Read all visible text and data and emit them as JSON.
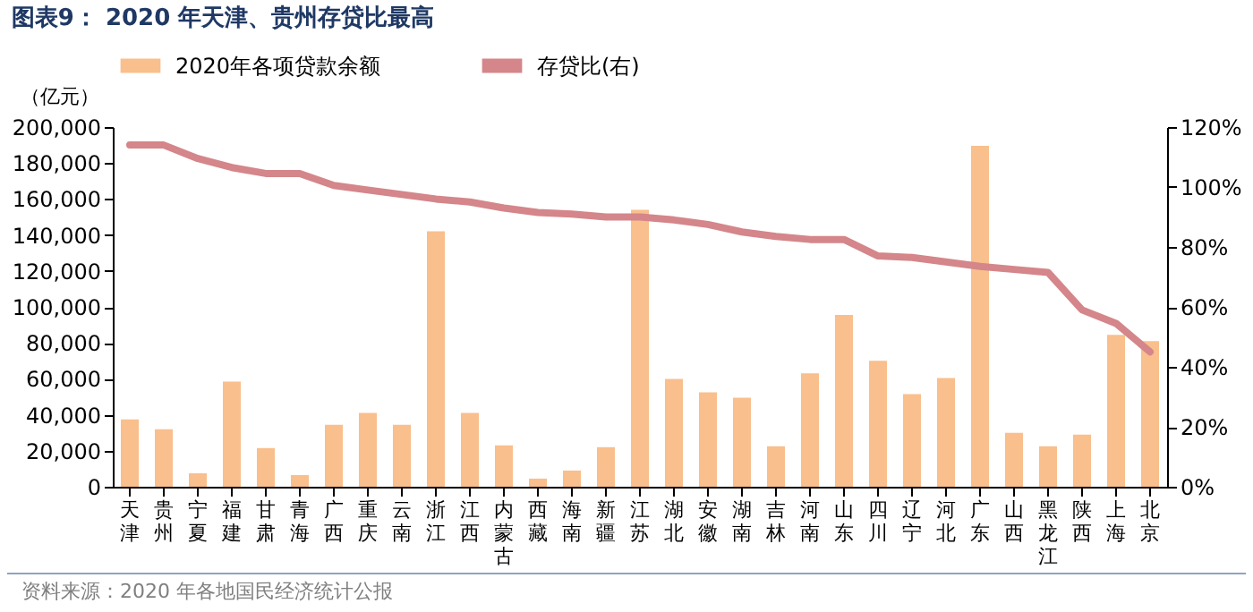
{
  "chart_data": {
    "type": "bar",
    "title": "图表9：  2020 年天津、贵州存贷比最高",
    "ylabel": "（亿元）",
    "categories": [
      "天津",
      "贵州",
      "宁夏",
      "福建",
      "甘肃",
      "青海",
      "广西",
      "重庆",
      "云南",
      "浙江",
      "江西",
      "内蒙古",
      "西藏",
      "海南",
      "新疆",
      "江苏",
      "湖北",
      "安徽",
      "湖南",
      "吉林",
      "河南",
      "山东",
      "四川",
      "辽宁",
      "河北",
      "广东",
      "山西",
      "黑龙江",
      "陕西",
      "上海",
      "北京"
    ],
    "series": [
      {
        "name": "2020年各项贷款余额",
        "color": "#f9bf8c",
        "values": [
          37500,
          32000,
          7500,
          58500,
          21500,
          6500,
          34500,
          41000,
          34500,
          142000,
          41000,
          23000,
          4500,
          9000,
          22000,
          154000,
          60000,
          52500,
          49500,
          22500,
          63000,
          95500,
          70000,
          51500,
          60500,
          189500,
          30000,
          22500,
          29000,
          84500,
          81000
        ]
      },
      {
        "name": "存贷比(右)",
        "type": "line",
        "axis": "y2",
        "color": "#d4868a",
        "values": [
          114,
          114,
          109.5,
          106.5,
          104.5,
          104.5,
          100.5,
          99,
          97.5,
          96,
          95,
          93,
          91.5,
          91,
          90,
          90,
          89,
          87.5,
          85,
          83.5,
          82.5,
          82.5,
          77,
          76.5,
          75,
          73.5,
          72.5,
          71.5,
          59,
          54.5,
          45
        ]
      }
    ],
    "ylim": [
      0,
      200000
    ],
    "yticks": [
      {
        "value": 0,
        "label": "0"
      },
      {
        "value": 20000,
        "label": "20,000"
      },
      {
        "value": 40000,
        "label": "40,000"
      },
      {
        "value": 60000,
        "label": "60,000"
      },
      {
        "value": 80000,
        "label": "80,000"
      },
      {
        "value": 100000,
        "label": "100,000"
      },
      {
        "value": 120000,
        "label": "120,000"
      },
      {
        "value": 140000,
        "label": "140,000"
      },
      {
        "value": 160000,
        "label": "160,000"
      },
      {
        "value": 180000,
        "label": "180,000"
      },
      {
        "value": 200000,
        "label": "200,000"
      }
    ],
    "y2lim": [
      0,
      120
    ],
    "y2ticks": [
      {
        "value": 0,
        "label": "0%"
      },
      {
        "value": 20,
        "label": "20%"
      },
      {
        "value": 40,
        "label": "40%"
      },
      {
        "value": 60,
        "label": "60%"
      },
      {
        "value": 80,
        "label": "80%"
      },
      {
        "value": 100,
        "label": "100%"
      },
      {
        "value": 120,
        "label": "120%"
      }
    ],
    "legend": "top",
    "annotations": [
      "资料来源：2020 年各地国民经济统计公报"
    ]
  }
}
